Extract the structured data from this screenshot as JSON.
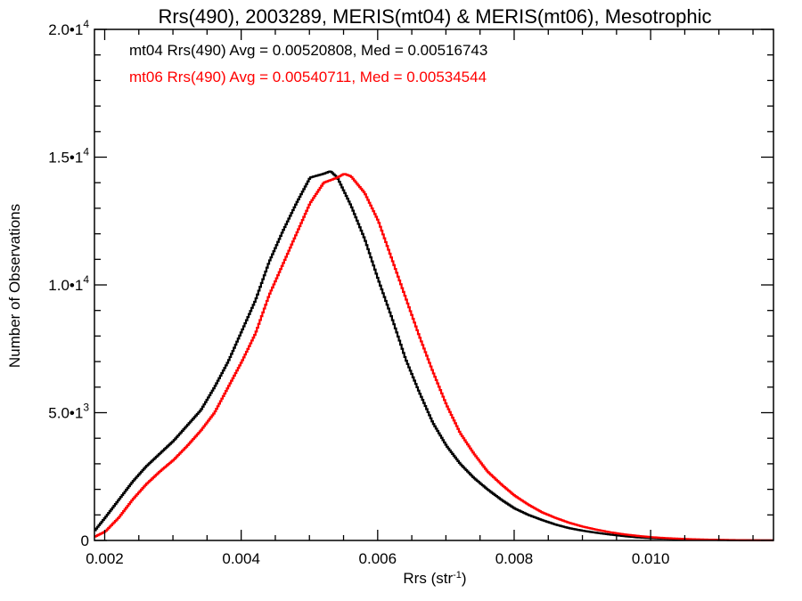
{
  "chart_data": {
    "type": "line",
    "title": "Rrs(490), 2003289, MERIS(mt04) & MERIS(mt06), Mesotrophic",
    "xlabel": "Rrs (str",
    "xlabel_superscript": "-1",
    "xlabel_suffix": ")",
    "ylabel": "Number of Observations",
    "xlim": [
      0.00185,
      0.0118
    ],
    "ylim": [
      0,
      20000
    ],
    "x_ticks": [
      0.002,
      0.004,
      0.006,
      0.008,
      0.01
    ],
    "x_tick_labels": [
      "0.002",
      "0.004",
      "0.006",
      "0.008",
      "0.010"
    ],
    "y_ticks": [
      {
        "value": 0,
        "mantissa": "0",
        "exponent": ""
      },
      {
        "value": 5000,
        "mantissa": "5.0•1",
        "exponent": "3"
      },
      {
        "value": 10000,
        "mantissa": "1.0•1",
        "exponent": "4"
      },
      {
        "value": 15000,
        "mantissa": "1.5•1",
        "exponent": "4"
      },
      {
        "value": 20000,
        "mantissa": "2.0•1",
        "exponent": "4"
      }
    ],
    "legend_position": "top-left",
    "series": [
      {
        "name": "mt04 Rrs(490) Avg = 0.00520808, Med = 0.00516743",
        "color": "#000000",
        "x": [
          0.00185,
          0.002,
          0.0022,
          0.0024,
          0.0026,
          0.0028,
          0.003,
          0.0032,
          0.0034,
          0.0036,
          0.0038,
          0.004,
          0.0042,
          0.0044,
          0.0046,
          0.0048,
          0.005,
          0.0052,
          0.0053,
          0.0054,
          0.0056,
          0.0058,
          0.006,
          0.0062,
          0.0064,
          0.0066,
          0.0068,
          0.007,
          0.0072,
          0.0074,
          0.0076,
          0.0078,
          0.008,
          0.0082,
          0.0084,
          0.0086,
          0.0088,
          0.009,
          0.0092,
          0.0094,
          0.0096,
          0.0098,
          0.01,
          0.0102,
          0.0104,
          0.0106,
          0.0108,
          0.011,
          0.0112,
          0.0114,
          0.0116,
          0.0118
        ],
        "y": [
          400,
          900,
          1600,
          2300,
          2900,
          3400,
          3900,
          4500,
          5100,
          6000,
          7000,
          8200,
          9400,
          10900,
          12100,
          13200,
          14200,
          14350,
          14450,
          14200,
          13100,
          11800,
          10200,
          8700,
          7100,
          5800,
          4600,
          3700,
          3000,
          2450,
          2000,
          1600,
          1250,
          1000,
          800,
          620,
          480,
          380,
          300,
          230,
          170,
          120,
          90,
          70,
          50,
          35,
          25,
          18,
          12,
          8,
          5,
          3
        ]
      },
      {
        "name": "mt06 Rrs(490) Avg = 0.00540711, Med = 0.00534544",
        "color": "#ff0000",
        "x": [
          0.00185,
          0.002,
          0.0022,
          0.0024,
          0.0026,
          0.0028,
          0.003,
          0.0032,
          0.0034,
          0.0036,
          0.0038,
          0.004,
          0.0042,
          0.0044,
          0.0046,
          0.0048,
          0.005,
          0.0052,
          0.0054,
          0.0055,
          0.0056,
          0.0058,
          0.006,
          0.0062,
          0.0064,
          0.0066,
          0.0068,
          0.007,
          0.0072,
          0.0074,
          0.0076,
          0.0078,
          0.008,
          0.0082,
          0.0084,
          0.0086,
          0.0088,
          0.009,
          0.0092,
          0.0094,
          0.0096,
          0.0098,
          0.01,
          0.0102,
          0.0104,
          0.0106,
          0.0108,
          0.011,
          0.0112,
          0.0114,
          0.0116,
          0.0118
        ],
        "y": [
          150,
          350,
          900,
          1600,
          2200,
          2700,
          3150,
          3700,
          4300,
          5000,
          6000,
          7000,
          8100,
          9600,
          10800,
          12000,
          13200,
          14000,
          14200,
          14350,
          14250,
          13600,
          12500,
          11000,
          9500,
          8000,
          6600,
          5300,
          4200,
          3400,
          2700,
          2200,
          1750,
          1400,
          1100,
          880,
          690,
          540,
          420,
          320,
          240,
          180,
          130,
          95,
          70,
          50,
          35,
          25,
          17,
          11,
          7,
          4
        ]
      }
    ]
  }
}
